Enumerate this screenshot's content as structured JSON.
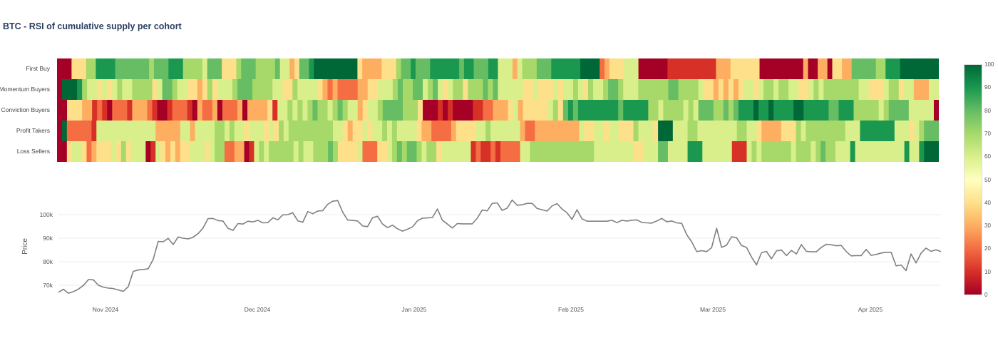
{
  "title": "BTC - RSI of cumulative supply per cohort",
  "chart_data": [
    {
      "type": "heatmap",
      "title": "BTC - RSI of cumulative supply per cohort",
      "rows": [
        "First Buy",
        "Momentum Buyers",
        "Conviction Buyers",
        "Profit Takers",
        "Loss Sellers"
      ],
      "x_range": [
        "2024-10-27",
        "2025-04-14"
      ],
      "colorscale": "RdYlGn",
      "zlim": [
        0,
        100
      ],
      "colorbar_ticks": [
        "0",
        "10",
        "20",
        "30",
        "40",
        "50",
        "60",
        "70",
        "80",
        "90",
        "100"
      ],
      "encoding": "each char is one day column; digit d means RSI ≈ d*10+5",
      "values": {
        "First Buy": "00044466888877777776777888666657774446777666675534778999999999433334446778777888888788777885553566677788888899992344455500000011111111113334444440000000003003304433777776688899999999",
        "Momentum Buyers": "09998655454565566664577655443464555677766665544655554323222233445556766775675456646667675555544544454556546556776555666666776666544343434554566566554456566666665544456645533355",
        "Conviction Buyers": "00444331210222133321001222103223022230333341556565676656765534556777766640001010000112233345344444564787888888887888886656666565777667678889889888899888887788866666567777555550",
        "Profit Takers": "09222221555555555555333335535555665655455545465666666666554344545565655554332222344445565555553223333333335445545544465554999555665555555566554333344465666666665558888888555456777",
        "Loss Sellers": "00455423444546455501543434455545662233015656666656556667644445222445676776566455555512112122225566666666666665555555544555775555888555555111565666666566656766555855555555558558999"
      },
      "row_order_note": "top to bottom as listed"
    },
    {
      "type": "line",
      "ylabel": "Price",
      "xlabel": "",
      "yticks": [
        "70k",
        "80k",
        "90k",
        "100k"
      ],
      "ylim": [
        65000,
        106000
      ],
      "xticks": [
        "Nov 2024",
        "Dec 2024",
        "Jan 2025",
        "Feb 2025",
        "Mar 2025",
        "Apr 2025"
      ],
      "grid": true,
      "color": "#808080",
      "x_start": "2024-10-27",
      "values": [
        67000,
        68300,
        66600,
        67300,
        68400,
        69900,
        72400,
        72300,
        70000,
        69200,
        68800,
        68600,
        68000,
        67400,
        69400,
        75900,
        76500,
        76700,
        77000,
        81000,
        88600,
        88500,
        89900,
        87300,
        90500,
        90000,
        89700,
        90400,
        91900,
        94300,
        98300,
        98400,
        97500,
        97300,
        94200,
        93300,
        96200,
        96000,
        97200,
        96900,
        97600,
        96500,
        96600,
        98700,
        97800,
        99900,
        100000,
        100800,
        97400,
        96800,
        101300,
        100400,
        101500,
        101700,
        104400,
        105700,
        106000,
        101100,
        97700,
        97600,
        97300,
        95200,
        94900,
        98700,
        99300,
        96000,
        94500,
        95500,
        94000,
        93000,
        93800,
        94800,
        97400,
        98500,
        98600,
        98800,
        102400,
        97600,
        96000,
        94300,
        96200,
        96100,
        96100,
        96100,
        98500,
        102000,
        101600,
        104800,
        105000,
        101800,
        102800,
        106200,
        104000,
        104200,
        104800,
        104800,
        102600,
        102100,
        101500,
        103700,
        104700,
        102400,
        100800,
        98000,
        102100,
        98200,
        97200,
        97200,
        97200,
        97200,
        97200,
        97600,
        96600,
        97600,
        97300,
        97600,
        97800,
        96700,
        96500,
        96400,
        97300,
        98400,
        97000,
        97300,
        96500,
        96300,
        91500,
        88500,
        84300,
        84700,
        84300,
        86000,
        94200,
        86100,
        87000,
        90600,
        90200,
        86900,
        86100,
        82000,
        78600,
        83800,
        84400,
        81200,
        84600,
        85000,
        82600,
        84800,
        83300,
        87300,
        84400,
        84200,
        84200,
        86100,
        87400,
        87200,
        86800,
        86900,
        84300,
        82500,
        82600,
        82600,
        85200,
        82700,
        83100,
        83700,
        84000,
        84000,
        78200,
        78600,
        76200,
        83300,
        79500,
        83600,
        85800,
        84400,
        85100,
        84300
      ]
    }
  ]
}
